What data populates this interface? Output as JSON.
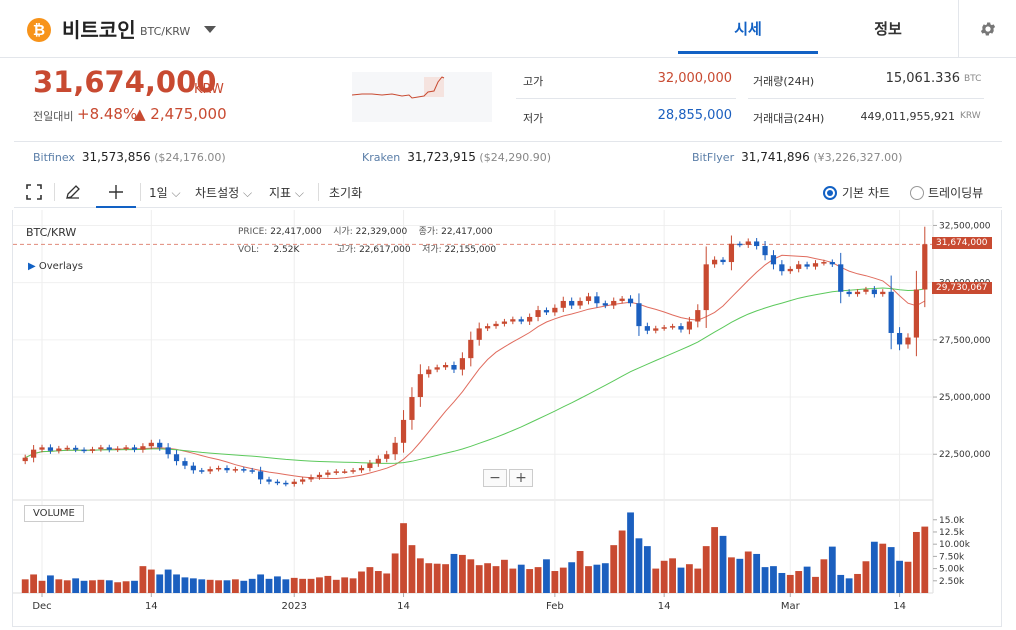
{
  "header": {
    "coin_icon": "bitcoin-icon",
    "coin_name": "비트코인",
    "coin_symbol": "BTC/KRW",
    "tabs": [
      {
        "label": "시세",
        "active": true
      },
      {
        "label": "정보",
        "active": false
      }
    ],
    "settings_icon": "gear-icon"
  },
  "summary": {
    "price": "31,674,000",
    "unit": "KRW",
    "change_label": "전일대비",
    "change_pct": "+8.48%",
    "change_abs": "▲ 2,475,000",
    "high_label": "고가",
    "high_value": "32,000,000",
    "low_label": "저가",
    "low_value": "28,855,000",
    "volume_label": "거래량(24H)",
    "volume_value": "15,061.336",
    "volume_unit": "BTC",
    "turnover_label": "거래대금(24H)",
    "turnover_value": "449,011,955,921",
    "turnover_unit": "KRW"
  },
  "exchanges": [
    {
      "name": "Bitfinex",
      "price": "31,573,856",
      "sub": "($24,176.00)"
    },
    {
      "name": "Kraken",
      "price": "31,723,915",
      "sub": "($24,290.90)"
    },
    {
      "name": "BitFlyer",
      "price": "31,741,896",
      "sub": "(¥3,226,327.00)"
    }
  ],
  "toolbar": {
    "fullscreen_icon": "fullscreen-icon",
    "draw_icon": "pencil-icon",
    "crosshair_icon": "crosshair-icon",
    "interval": "1일",
    "chart_settings": "차트설정",
    "indicators": "지표",
    "reset": "초기화",
    "view_basic": "기본 차트",
    "view_tradingview": "트레이딩뷰",
    "selected_view": "기본 차트"
  },
  "colors": {
    "up": "#c84a31",
    "down": "#1b5fbf",
    "ma_short": "#e06c5e",
    "ma_long": "#5cc95c",
    "accent": "#1261c4"
  },
  "chart_data": {
    "type": "candlestick",
    "title": "BTC/KRW",
    "overlays_label": "Overlays",
    "info": {
      "price_label": "PRICE:",
      "price": "22,417,000",
      "vol_label": "VOL:",
      "vol": "2.52K",
      "open_label": "시가:",
      "open": "22,329,000",
      "high_label": "고가:",
      "high": "22,617,000",
      "close_label": "종가:",
      "close": "22,417,000",
      "low_label": "저가:",
      "low": "22,155,000"
    },
    "y_ticks": [
      "32,500,000",
      "30,000,000",
      "27,500,000",
      "25,000,000",
      "22,500,000"
    ],
    "y_tick_values": [
      32500000,
      30000000,
      27500000,
      25000000,
      22500000
    ],
    "ylim": [
      20500000,
      33000000
    ],
    "current_price_tag": "31,674,000",
    "current_price_value": 31674000,
    "ma_price_tag": "29,730,067",
    "ma_price_value": 29730067,
    "x_ticks": [
      {
        "label": "Dec",
        "index": 2
      },
      {
        "label": "14",
        "index": 15
      },
      {
        "label": "2023",
        "index": 32
      },
      {
        "label": "14",
        "index": 45
      },
      {
        "label": "Feb",
        "index": 63
      },
      {
        "label": "14",
        "index": 76
      },
      {
        "label": "Mar",
        "index": 91
      },
      {
        "label": "14",
        "index": 104
      }
    ],
    "volume_label": "VOLUME",
    "volume_ticks": [
      "15.0k",
      "12.5k",
      "10.00k",
      "7.50k",
      "5.00k",
      "2.50k"
    ],
    "volume_tick_values": [
      15000,
      12500,
      10000,
      7500,
      5000,
      2500
    ],
    "volume_max": 17000,
    "closes": [
      22350000,
      22700000,
      22800000,
      22650000,
      22750000,
      22780000,
      22700000,
      22650000,
      22720000,
      22800000,
      22700000,
      22750000,
      22800000,
      22700000,
      22850000,
      23000000,
      22800000,
      22500000,
      22200000,
      22000000,
      21800000,
      21750000,
      21850000,
      21900000,
      21800000,
      21850000,
      21800000,
      21750000,
      21400000,
      21300000,
      21250000,
      21200000,
      21300000,
      21400000,
      21500000,
      21600000,
      21700000,
      21750000,
      21750000,
      21800000,
      21900000,
      22100000,
      22300000,
      22500000,
      23000000,
      24000000,
      25000000,
      26000000,
      26200000,
      26300000,
      26400000,
      26200000,
      26700000,
      27500000,
      28000000,
      28100000,
      28200000,
      28300000,
      28400000,
      28300000,
      28500000,
      28800000,
      28700000,
      28900000,
      29200000,
      29000000,
      29200000,
      29400000,
      29100000,
      29000000,
      29200000,
      29300000,
      29100000,
      28100000,
      27900000,
      28000000,
      28050000,
      28100000,
      27950000,
      28300000,
      28800000,
      30800000,
      31000000,
      30900000,
      31700000,
      31650000,
      31800000,
      31600000,
      31200000,
      30800000,
      30500000,
      30600000,
      30800000,
      30700000,
      30850000,
      30900000,
      30800000,
      29600000,
      29500000,
      29600000,
      29700000,
      29500000,
      29600000,
      27800000,
      27300000,
      27600000,
      29700000,
      31674000
    ],
    "volumes": [
      2800,
      3800,
      2500,
      3600,
      2800,
      2600,
      3000,
      2500,
      2600,
      2700,
      2600,
      2200,
      2400,
      2500,
      5500,
      4800,
      3800,
      4800,
      3800,
      3200,
      3000,
      2800,
      2700,
      2600,
      2600,
      2800,
      2500,
      2900,
      3800,
      2900,
      3400,
      2800,
      3100,
      2900,
      2900,
      3200,
      3500,
      2700,
      3200,
      3000,
      4400,
      5300,
      4500,
      4000,
      8100,
      14300,
      9800,
      7100,
      6100,
      6000,
      5900,
      8000,
      7800,
      6900,
      5700,
      6100,
      5500,
      6800,
      5000,
      5800,
      4900,
      5300,
      6900,
      4500,
      5200,
      6300,
      8600,
      5500,
      5800,
      6100,
      9800,
      12800,
      16500,
      11200,
      9600,
      5000,
      6600,
      7100,
      5200,
      5900,
      5000,
      9600,
      13500,
      11700,
      7300,
      7000,
      8500,
      8000,
      5300,
      5500,
      4100,
      3700,
      4500,
      5400,
      3300,
      6900,
      9500,
      3700,
      3000,
      3900,
      6500,
      10500,
      10100,
      9400,
      6600,
      6400,
      12500,
      13600
    ]
  }
}
